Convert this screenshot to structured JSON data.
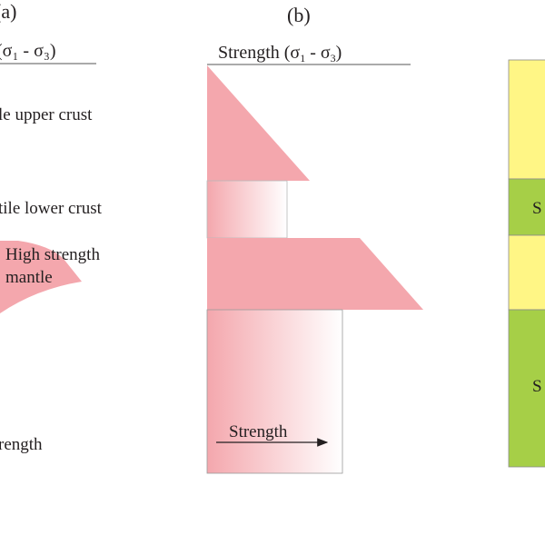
{
  "colors": {
    "pink": "#f4a7ad",
    "yellow": "#fff685",
    "green": "#a6cf47",
    "ink": "#231f20",
    "axis": "#555555"
  },
  "panel_a": {
    "tag": "(a)",
    "axis_title": "(σ₁ - σ₃)",
    "layer_labels": [
      "le upper crust",
      "tile lower crust"
    ],
    "mantle_label": [
      "High strength",
      "mantle"
    ],
    "bottom_label": "rength"
  },
  "panel_b": {
    "tag": "(b)",
    "axis_title_prefix": "Strength (σ",
    "axis_sub_1": "1",
    "axis_mid": " - σ",
    "axis_sub_3": "3",
    "axis_suffix": ")",
    "arrow_label": "Strength"
  },
  "panel_c": {
    "labels": [
      "S",
      "S"
    ]
  }
}
